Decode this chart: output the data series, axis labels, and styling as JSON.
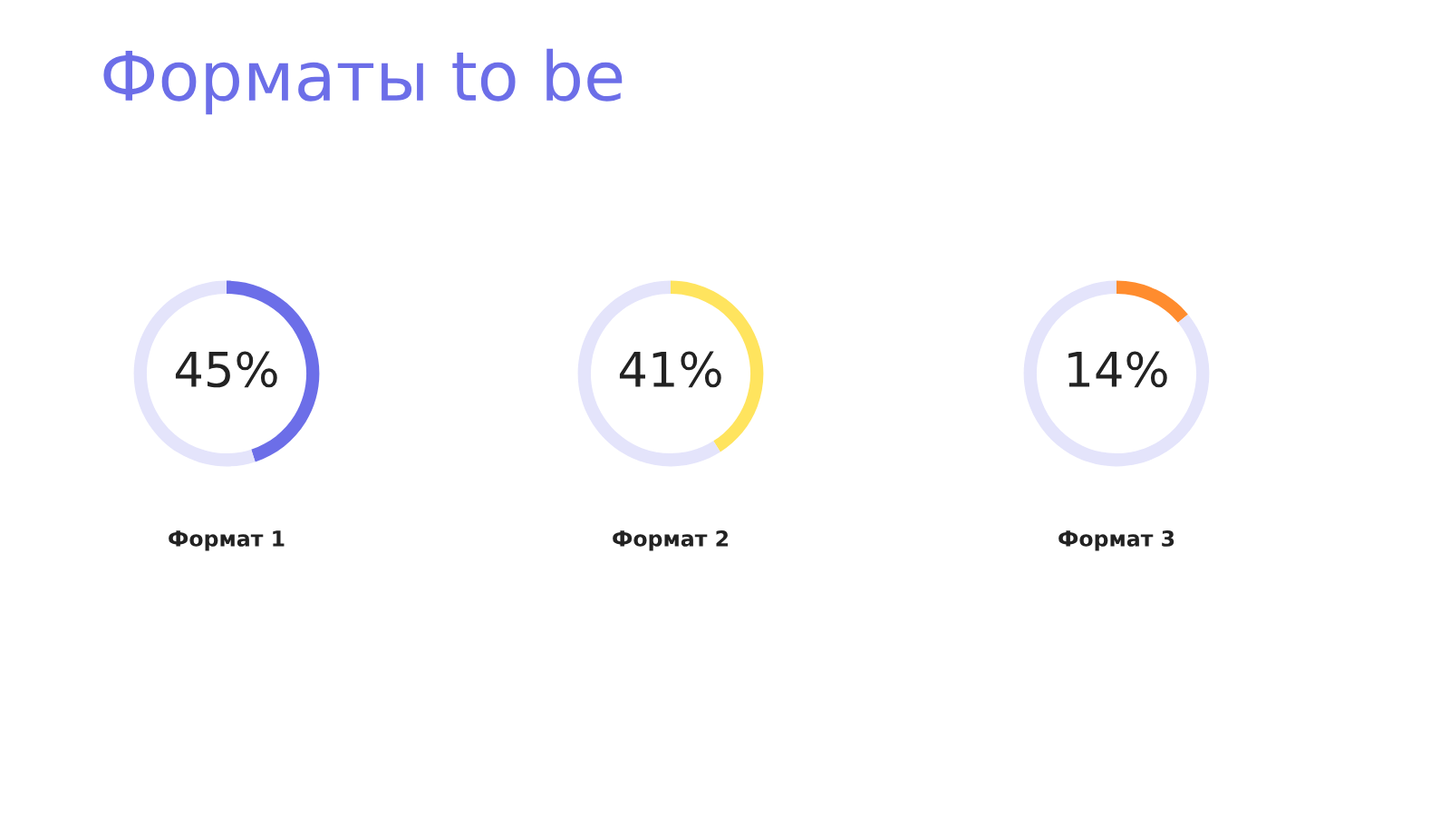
{
  "chart_data": [
    {
      "type": "donut",
      "title": "Форматы to be",
      "xlabel": "Формат 1",
      "categories": [
        null,
        null
      ],
      "values": [
        45,
        55
      ],
      "colors": [
        "#6c6ee8",
        "#e4e4fb"
      ],
      "value_labels": [
        "45%",
        null
      ]
    },
    {
      "type": "donut",
      "xlabel": "Формат 2",
      "categories": [
        null,
        null
      ],
      "values": [
        41,
        59
      ],
      "colors": [
        "#ffe45e",
        "#e4e4fb"
      ],
      "value_labels": [
        "41%",
        null
      ]
    },
    {
      "type": "donut",
      "xlabel": "Формат 3",
      "categories": [
        null,
        null
      ],
      "values": [
        14,
        86
      ],
      "colors": [
        "#ff8c2e",
        "#e4e4fb"
      ],
      "value_labels": [
        "14%",
        null
      ]
    }
  ]
}
